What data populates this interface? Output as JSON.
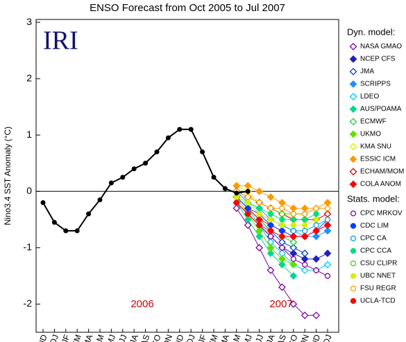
{
  "chart_data": {
    "type": "line",
    "title": "ENSO Forecast from Oct 2005 to Jul 2007",
    "logo": "IRI",
    "y_label": "Nino3.4 SST Anomaly (°C)",
    "annotations": [
      "2006",
      "2007"
    ],
    "categories": [
      "OND",
      "NDJ",
      "DJF",
      "JFM",
      "FMA",
      "MAM",
      "AMJ",
      "MJJ",
      "JJA",
      "JAS",
      "ASO",
      "SON",
      "OND",
      "NDJ",
      "DJF",
      "JFM",
      "FMA",
      "MAM",
      "AMJ",
      "MJJ",
      "JJA",
      "JAS",
      "ASO",
      "SON",
      "OND",
      "NDJ"
    ],
    "ylim": [
      -2.5,
      3.05
    ],
    "yticks": [
      -2,
      -1,
      0,
      1,
      2,
      3
    ],
    "baseline": 0,
    "observed": {
      "color": "#000000",
      "values": [
        -0.2,
        -0.55,
        -0.7,
        -0.7,
        -0.4,
        -0.15,
        0.15,
        0.25,
        0.4,
        0.5,
        0.7,
        0.95,
        1.1,
        1.1,
        0.7,
        0.25,
        0.05,
        -0.03,
        0.0,
        null,
        null,
        null,
        null,
        null,
        null,
        null
      ]
    },
    "series_groups": [
      {
        "title": "Dyn. model:",
        "series": [
          {
            "name": "NASA GMAO",
            "color": "#8000a0",
            "marker": "diamond",
            "filled": false,
            "values": [
              null,
              null,
              null,
              null,
              null,
              null,
              null,
              null,
              null,
              null,
              null,
              null,
              null,
              null,
              null,
              null,
              null,
              -0.3,
              -0.6,
              -1.0,
              -1.4,
              -1.7,
              -2.0,
              -2.2,
              -2.2,
              null
            ]
          },
          {
            "name": "NCEP CFS",
            "color": "#2020c0",
            "marker": "diamond",
            "filled": true,
            "values": [
              null,
              null,
              null,
              null,
              null,
              null,
              null,
              null,
              null,
              null,
              null,
              null,
              null,
              null,
              null,
              null,
              null,
              -0.2,
              -0.4,
              -0.6,
              -0.8,
              -1.0,
              -1.1,
              -1.2,
              -1.2,
              -1.1
            ]
          },
          {
            "name": "JMA",
            "color": "#0040d0",
            "marker": "diamond",
            "filled": false,
            "values": [
              null,
              null,
              null,
              null,
              null,
              null,
              null,
              null,
              null,
              null,
              null,
              null,
              null,
              null,
              null,
              null,
              null,
              -0.1,
              -0.3,
              -0.5,
              -0.7,
              -0.9,
              -1.0,
              -1.1,
              null,
              null
            ]
          },
          {
            "name": "SCRIPPS",
            "color": "#1e90ff",
            "marker": "diamond",
            "filled": true,
            "values": [
              null,
              null,
              null,
              null,
              null,
              null,
              null,
              null,
              null,
              null,
              null,
              null,
              null,
              null,
              null,
              null,
              null,
              0.0,
              -0.2,
              -0.3,
              -0.5,
              -0.6,
              -0.7,
              -0.8,
              -0.8,
              -0.7
            ]
          },
          {
            "name": "LDEO",
            "color": "#00c8ff",
            "marker": "diamond",
            "filled": false,
            "values": [
              null,
              null,
              null,
              null,
              null,
              null,
              null,
              null,
              null,
              null,
              null,
              null,
              null,
              null,
              null,
              null,
              null,
              -0.1,
              -0.3,
              -0.6,
              -0.9,
              -1.1,
              -1.3,
              -1.4,
              -1.4,
              -1.3
            ]
          },
          {
            "name": "AUS/POAMA",
            "color": "#00d890",
            "marker": "diamond",
            "filled": true,
            "values": [
              null,
              null,
              null,
              null,
              null,
              null,
              null,
              null,
              null,
              null,
              null,
              null,
              null,
              null,
              null,
              null,
              null,
              -0.2,
              -0.5,
              -0.8,
              -1.1,
              -1.3,
              -1.5,
              null,
              null,
              null
            ]
          },
          {
            "name": "ECMWF",
            "color": "#20d040",
            "marker": "diamond",
            "filled": false,
            "values": [
              null,
              null,
              null,
              null,
              null,
              null,
              null,
              null,
              null,
              null,
              null,
              null,
              null,
              null,
              null,
              null,
              null,
              -0.1,
              -0.3,
              -0.5,
              -0.7,
              -0.8,
              -0.9,
              null,
              null,
              null
            ]
          },
          {
            "name": "UKMO",
            "color": "#60e000",
            "marker": "diamond",
            "filled": true,
            "values": [
              null,
              null,
              null,
              null,
              null,
              null,
              null,
              null,
              null,
              null,
              null,
              null,
              null,
              null,
              null,
              null,
              null,
              -0.1,
              -0.4,
              -0.7,
              -1.0,
              -1.2,
              -1.3,
              null,
              null,
              null
            ]
          },
          {
            "name": "KMA SNU",
            "color": "#d8e800",
            "marker": "diamond",
            "filled": false,
            "values": [
              null,
              null,
              null,
              null,
              null,
              null,
              null,
              null,
              null,
              null,
              null,
              null,
              null,
              null,
              null,
              null,
              null,
              0.1,
              0.0,
              -0.2,
              -0.3,
              -0.4,
              -0.5,
              -0.5,
              null,
              null
            ]
          },
          {
            "name": "ESSIC ICM",
            "color": "#ff9900",
            "marker": "diamond",
            "filled": true,
            "values": [
              null,
              null,
              null,
              null,
              null,
              null,
              null,
              null,
              null,
              null,
              null,
              null,
              null,
              null,
              null,
              null,
              null,
              0.1,
              0.1,
              0.0,
              -0.1,
              -0.2,
              -0.3,
              -0.3,
              -0.3,
              -0.2
            ]
          },
          {
            "name": "ECHAM/MOM",
            "color": "#e00000",
            "marker": "diamond",
            "filled": false,
            "values": [
              null,
              null,
              null,
              null,
              null,
              null,
              null,
              null,
              null,
              null,
              null,
              null,
              null,
              null,
              null,
              null,
              null,
              0.0,
              -0.1,
              -0.2,
              -0.3,
              -0.4,
              -0.5,
              -0.5,
              -0.5,
              -0.4
            ]
          },
          {
            "name": "COLA ANOM",
            "color": "#ff0000",
            "marker": "diamond",
            "filled": true,
            "values": [
              null,
              null,
              null,
              null,
              null,
              null,
              null,
              null,
              null,
              null,
              null,
              null,
              null,
              null,
              null,
              null,
              null,
              -0.1,
              -0.3,
              -0.5,
              -0.6,
              -0.7,
              -0.8,
              -0.8,
              -0.7,
              -0.6
            ]
          }
        ]
      },
      {
        "title": "Stats. model:",
        "series": [
          {
            "name": "CPC MRKOV",
            "color": "#8000a0",
            "marker": "circle",
            "filled": false,
            "values": [
              null,
              null,
              null,
              null,
              null,
              null,
              null,
              null,
              null,
              null,
              null,
              null,
              null,
              null,
              null,
              null,
              null,
              -0.2,
              -0.4,
              -0.6,
              -0.8,
              -1.0,
              -1.2,
              -1.3,
              -1.4,
              -1.5
            ]
          },
          {
            "name": "CDC LIM",
            "color": "#0040ff",
            "marker": "circle",
            "filled": true,
            "values": [
              null,
              null,
              null,
              null,
              null,
              null,
              null,
              null,
              null,
              null,
              null,
              null,
              null,
              null,
              null,
              null,
              null,
              -0.1,
              -0.3,
              -0.4,
              -0.6,
              -0.7,
              -0.8,
              -0.8,
              -0.7,
              -0.5
            ]
          },
          {
            "name": "CPC CA",
            "color": "#00a0e0",
            "marker": "circle",
            "filled": false,
            "values": [
              null,
              null,
              null,
              null,
              null,
              null,
              null,
              null,
              null,
              null,
              null,
              null,
              null,
              null,
              null,
              null,
              null,
              0.0,
              -0.2,
              -0.4,
              -0.5,
              -0.6,
              -0.7,
              -0.7,
              -0.6,
              -0.5
            ]
          },
          {
            "name": "CPC CCA",
            "color": "#00e080",
            "marker": "circle",
            "filled": true,
            "values": [
              null,
              null,
              null,
              null,
              null,
              null,
              null,
              null,
              null,
              null,
              null,
              null,
              null,
              null,
              null,
              null,
              null,
              -0.1,
              -0.2,
              -0.3,
              -0.4,
              -0.5,
              -0.5,
              -0.5,
              -0.4,
              null
            ]
          },
          {
            "name": "CSU CLIPR",
            "color": "#40d000",
            "marker": "circle",
            "filled": false,
            "values": [
              null,
              null,
              null,
              null,
              null,
              null,
              null,
              null,
              null,
              null,
              null,
              null,
              null,
              null,
              null,
              null,
              null,
              0.0,
              -0.1,
              -0.2,
              -0.3,
              -0.4,
              -0.4,
              -0.4,
              null,
              null
            ]
          },
          {
            "name": "UBC NNET",
            "color": "#d8f000",
            "marker": "circle",
            "filled": true,
            "values": [
              null,
              null,
              null,
              null,
              null,
              null,
              null,
              null,
              null,
              null,
              null,
              null,
              null,
              null,
              null,
              null,
              null,
              -0.1,
              -0.2,
              -0.4,
              -0.5,
              -0.6,
              -0.6,
              -0.6,
              -0.5,
              null
            ]
          },
          {
            "name": "FSU REGR",
            "color": "#ff9900",
            "marker": "circle",
            "filled": false,
            "values": [
              null,
              null,
              null,
              null,
              null,
              null,
              null,
              null,
              null,
              null,
              null,
              null,
              null,
              null,
              null,
              null,
              null,
              0.0,
              -0.1,
              -0.2,
              -0.3,
              -0.3,
              -0.4,
              -0.4,
              -0.3,
              -0.3
            ]
          },
          {
            "name": "UCLA-TCD",
            "color": "#ff0000",
            "marker": "circle",
            "filled": true,
            "values": [
              null,
              null,
              null,
              null,
              null,
              null,
              null,
              null,
              null,
              null,
              null,
              null,
              null,
              null,
              null,
              null,
              null,
              -0.2,
              -0.4,
              -0.6,
              -0.7,
              -0.8,
              -0.8,
              -0.8,
              -0.7,
              -0.6
            ]
          }
        ]
      }
    ]
  }
}
